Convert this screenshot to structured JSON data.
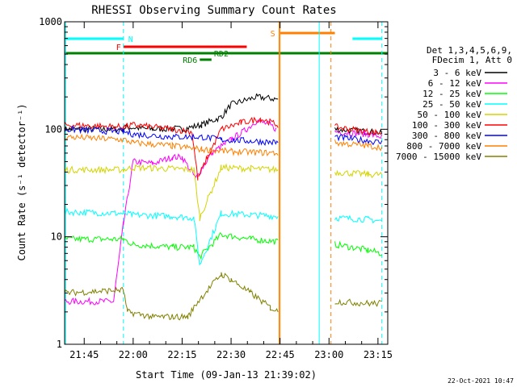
{
  "chart_data": {
    "type": "line",
    "title": "RHESSI Observing Summary Count Rates",
    "xlabel": "Start Time (09-Jan-13 21:39:02)",
    "ylabel": "Count Rate (s⁻¹ detector⁻¹)",
    "y_scale": "log",
    "ylim": [
      1,
      1000
    ],
    "xlim_minutes": [
      21.65,
      23.3
    ],
    "x_ticks": [
      "21:45",
      "22:00",
      "22:15",
      "22:30",
      "22:45",
      "23:00",
      "23:15"
    ],
    "y_ticks": [
      "1",
      "10",
      "100",
      "1000"
    ],
    "grid": false,
    "legend": {
      "header": [
        "Det 1,3,4,5,6,9,",
        "FDecim 1, Att 0"
      ],
      "placement": "right"
    },
    "series": [
      {
        "name": "3 - 6 keV",
        "color": "#000000",
        "segments": [
          {
            "x": [
              21.65,
              21.95,
              21.96,
              22.1,
              22.2,
              22.25,
              22.35,
              22.45,
              22.5,
              22.63,
              22.74
            ],
            "y": [
              100,
              100,
              105,
              100,
              102,
              100,
              110,
              130,
              170,
              200,
              190
            ]
          },
          {
            "x": [
              23.03,
              23.2,
              23.27
            ],
            "y": [
              100,
              95,
              92
            ]
          }
        ]
      },
      {
        "name": "6 - 12 keV",
        "color": "#ff00ff",
        "segments": [
          {
            "x": [
              21.65,
              21.9,
              21.95,
              22.0,
              22.1,
              22.2,
              22.25,
              22.32,
              22.4,
              22.5,
              22.58,
              22.63,
              22.7,
              22.73
            ],
            "y": [
              2.5,
              2.5,
              13,
              50,
              48,
              55,
              55,
              35,
              60,
              80,
              100,
              120,
              110,
              100
            ]
          },
          {
            "x": [
              23.03,
              23.2,
              23.27
            ],
            "y": [
              95,
              90,
              85
            ]
          }
        ]
      },
      {
        "name": "12 - 25 keV",
        "color": "#00ff00",
        "segments": [
          {
            "x": [
              21.65,
              21.95,
              22.0,
              22.2,
              22.31,
              22.34,
              22.45,
              22.6,
              22.74
            ],
            "y": [
              9.5,
              9.5,
              8.5,
              8.0,
              8.0,
              6.5,
              10.5,
              9.5,
              9.0
            ]
          },
          {
            "x": [
              23.03,
              23.2,
              23.27
            ],
            "y": [
              8.5,
              7.5,
              7.0
            ]
          }
        ]
      },
      {
        "name": "25 - 50 keV",
        "color": "#00ffff",
        "segments": [
          {
            "x": [
              21.65,
              21.95,
              22.0,
              22.2,
              22.31,
              22.34,
              22.45,
              22.6,
              22.74
            ],
            "y": [
              17,
              16.5,
              16,
              15.5,
              15,
              5.5,
              16.5,
              16,
              15.5
            ]
          },
          {
            "x": [
              23.03,
              23.2,
              23.27
            ],
            "y": [
              15,
              14.5,
              14
            ]
          }
        ]
      },
      {
        "name": "50 - 100 keV",
        "color": "#d4d400",
        "segments": [
          {
            "x": [
              21.65,
              21.95,
              22.0,
              22.2,
              22.31,
              22.34,
              22.45,
              22.6,
              22.74
            ],
            "y": [
              42,
              42,
              44,
              43,
              42,
              15,
              44,
              43,
              42
            ]
          },
          {
            "x": [
              23.03,
              23.2,
              23.27
            ],
            "y": [
              40,
              38,
              38
            ]
          }
        ]
      },
      {
        "name": "100 - 300 keV",
        "color": "#ff0000",
        "segments": [
          {
            "x": [
              21.65,
              21.95,
              22.0,
              22.2,
              22.3,
              22.33,
              22.38,
              22.45,
              22.55,
              22.65,
              22.74
            ],
            "y": [
              110,
              105,
              110,
              100,
              95,
              35,
              55,
              100,
              115,
              125,
              110
            ]
          },
          {
            "x": [
              23.03,
              23.2,
              23.27
            ],
            "y": [
              105,
              95,
              92
            ]
          }
        ]
      },
      {
        "name": "300 - 800 keV",
        "color": "#0000ff",
        "segments": [
          {
            "x": [
              21.65,
              21.95,
              22.0,
              22.2,
              22.35,
              22.45,
              22.6,
              22.74
            ],
            "y": [
              100,
              95,
              90,
              85,
              85,
              80,
              78,
              75
            ]
          },
          {
            "x": [
              23.03,
              23.2,
              23.27
            ],
            "y": [
              85,
              78,
              75
            ]
          }
        ]
      },
      {
        "name": "800 - 7000 keV",
        "color": "#ff8000",
        "segments": [
          {
            "x": [
              21.65,
              21.95,
              22.0,
              22.2,
              22.35,
              22.5,
              22.74
            ],
            "y": [
              85,
              80,
              75,
              70,
              65,
              62,
              60
            ]
          },
          {
            "x": [
              23.03,
              23.2,
              23.27
            ],
            "y": [
              75,
              70,
              68
            ]
          }
        ]
      },
      {
        "name": "7000 - 15000 keV",
        "color": "#808000",
        "segments": [
          {
            "x": [
              21.65,
              21.95,
              21.97,
              22.1,
              22.28,
              22.33,
              22.45,
              22.5,
              22.6,
              22.7,
              22.74
            ],
            "y": [
              3,
              3.2,
              2.0,
              1.8,
              1.8,
              2.5,
              4.5,
              4.0,
              3.0,
              2.2,
              2.0
            ]
          },
          {
            "x": [
              23.03,
              23.2,
              23.27
            ],
            "y": [
              2.5,
              2.4,
              2.4
            ]
          }
        ]
      }
    ],
    "flags": [
      {
        "label": "N",
        "color": "#00ffff",
        "segments": [
          [
            21.65,
            21.95
          ],
          [
            23.12,
            23.27
          ]
        ]
      },
      {
        "label": "F",
        "color": "#ff0000",
        "segments": [
          [
            21.95,
            22.58
          ]
        ]
      },
      {
        "label": "RD2",
        "color": "#008000",
        "segments": [
          [
            21.65,
            23.3
          ]
        ]
      },
      {
        "label": "RD6",
        "color": "#008000",
        "segments": [
          [
            22.34,
            22.4
          ]
        ]
      },
      {
        "label": "S",
        "color": "#ff8000",
        "segments": [
          [
            22.75,
            23.03
          ]
        ]
      }
    ],
    "vertical_markers": [
      {
        "x": 21.655,
        "color": "#00ffff",
        "style": "solid"
      },
      {
        "x": 21.95,
        "color": "#00ffff",
        "style": "dashed"
      },
      {
        "x": 22.745,
        "color": "#ff8000",
        "style": "solid"
      },
      {
        "x": 22.75,
        "color": "#ff8000",
        "style": "solid"
      },
      {
        "x": 22.95,
        "color": "#00ffff",
        "style": "solid"
      },
      {
        "x": 23.01,
        "color": "#ff8000",
        "style": "dashed"
      },
      {
        "x": 23.27,
        "color": "#00ffff",
        "style": "dashed"
      }
    ],
    "footer_date": "22-Oct-2021 10:47"
  }
}
